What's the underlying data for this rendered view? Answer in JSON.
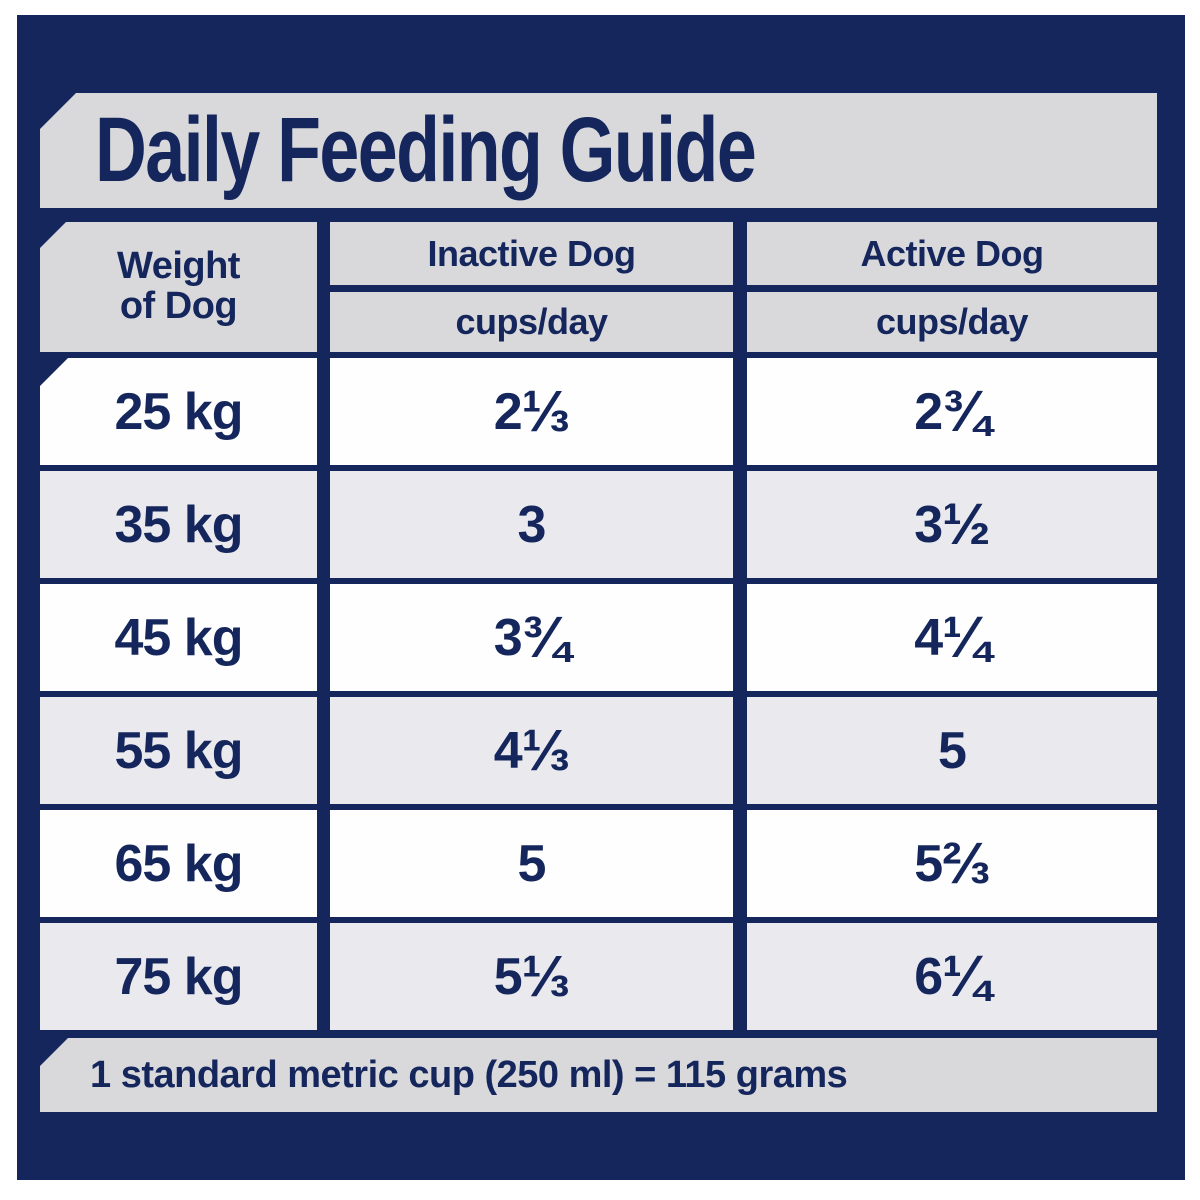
{
  "page": {
    "title": "Daily Feeding Guide"
  },
  "colors": {
    "navy": "#14265c",
    "band_gray": "#d9d9dc",
    "row_gray": "#eaeaee",
    "row_white": "#fefefe"
  },
  "table": {
    "col1_header_line1": "Weight",
    "col1_header_line2": "of Dog",
    "col2_header": "Inactive Dog",
    "col3_header": "Active Dog",
    "subheader": "cups/day",
    "rows": [
      {
        "weight": "25 kg",
        "inactive": "2 ⅓",
        "active": "2 ¾"
      },
      {
        "weight": "35 kg",
        "inactive": "3",
        "active": "3 ½"
      },
      {
        "weight": "45 kg",
        "inactive": "3 ¾",
        "active": "4 ¼"
      },
      {
        "weight": "55 kg",
        "inactive": "4 ⅓",
        "active": "5"
      },
      {
        "weight": "65 kg",
        "inactive": "5",
        "active": "5 ⅔"
      },
      {
        "weight": "75 kg",
        "inactive": "5 ⅓",
        "active": "6 ¼"
      }
    ]
  },
  "footer": {
    "note": "1 standard metric cup (250 ml) = 115 grams"
  },
  "chart_data": {
    "type": "table",
    "title": "Daily Feeding Guide",
    "columns": [
      "Weight of Dog",
      "Inactive Dog cups/day",
      "Active Dog cups/day"
    ],
    "rows": [
      [
        "25 kg",
        "2 1/3",
        "2 3/4"
      ],
      [
        "35 kg",
        "3",
        "3 1/2"
      ],
      [
        "45 kg",
        "3 3/4",
        "4 1/4"
      ],
      [
        "55 kg",
        "4 1/3",
        "5"
      ],
      [
        "65 kg",
        "5",
        "5 2/3"
      ],
      [
        "75 kg",
        "5 1/3",
        "6 1/4"
      ]
    ],
    "note": "1 standard metric cup (250 ml) = 115 grams"
  }
}
